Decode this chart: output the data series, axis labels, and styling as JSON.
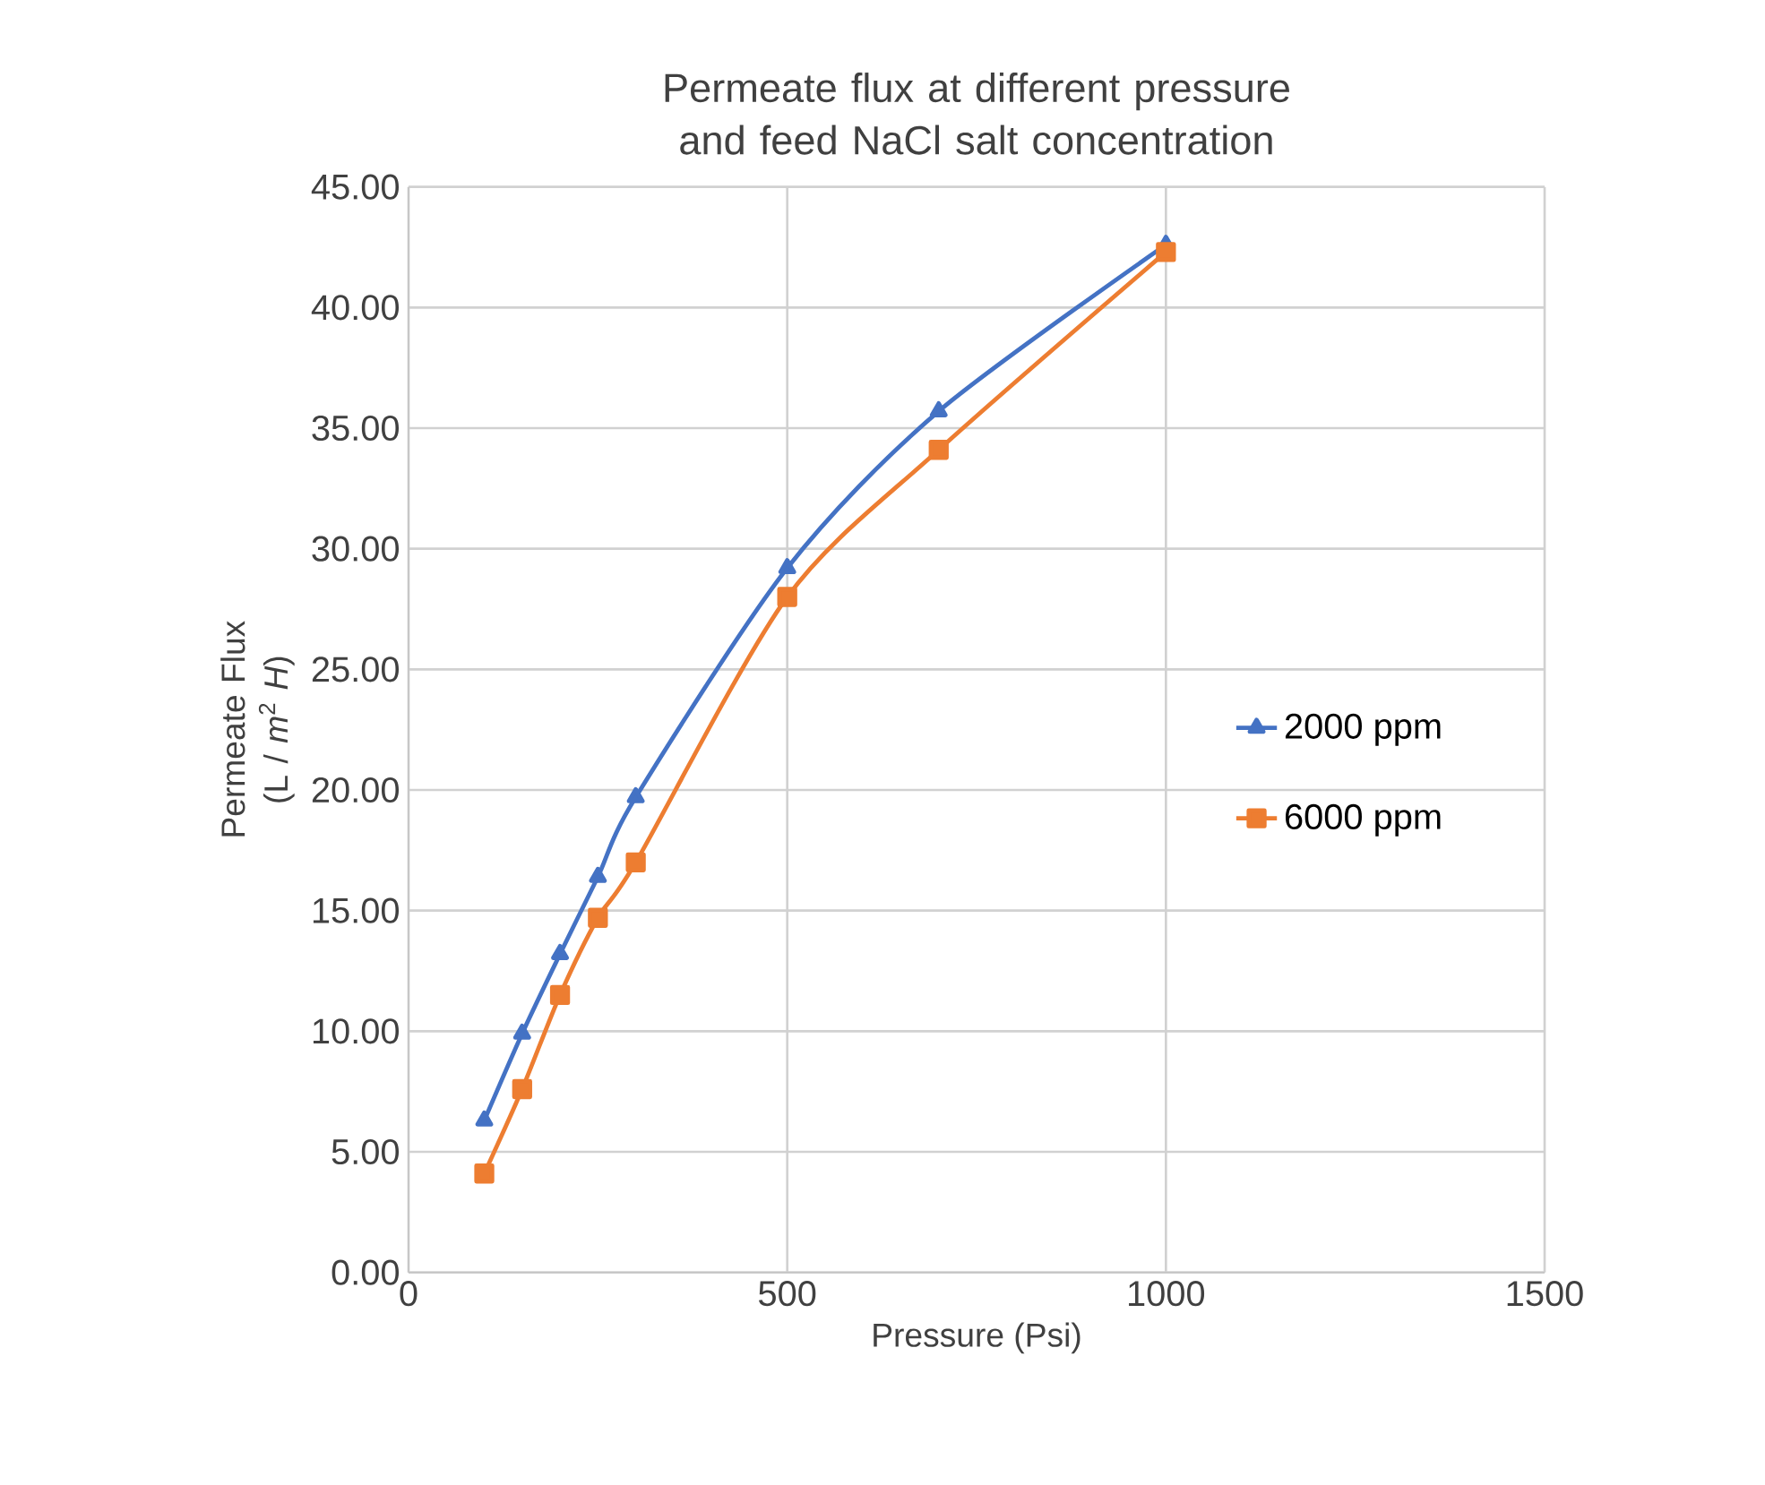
{
  "chart_data": {
    "type": "line",
    "title": "Permeate flux at different pressure and feed NaCl salt concentration",
    "xlabel": "Pressure (Psi)",
    "ylabel": "Permeate Flux (L / *m*$^{2}$ *H*)",
    "xlim": [
      0,
      1500
    ],
    "xticks": [
      0,
      500,
      1000,
      1500
    ],
    "ylim": [
      0,
      45
    ],
    "yticks": [
      {
        "value": 0,
        "label": "0.00"
      },
      {
        "value": 5,
        "label": "5.00"
      },
      {
        "value": 10,
        "label": "10.00"
      },
      {
        "value": 15,
        "label": "15.00"
      },
      {
        "value": 20,
        "label": "20.00"
      },
      {
        "value": 25,
        "label": "25.00"
      },
      {
        "value": 30,
        "label": "30.00"
      },
      {
        "value": 35,
        "label": "35.00"
      },
      {
        "value": 40,
        "label": "40.00"
      },
      {
        "value": 45,
        "label": "45.00"
      }
    ],
    "grid": true,
    "legend": "right",
    "series": [
      {
        "name": "2000 ppm",
        "color": "#4472c4",
        "marker": "triangle",
        "x": [
          100,
          150,
          200,
          250,
          300,
          500,
          700,
          1000
        ],
        "values": [
          6.3,
          9.9,
          13.2,
          16.4,
          19.7,
          29.2,
          35.7,
          42.6
        ]
      },
      {
        "name": "6000 ppm",
        "color": "#ed7d31",
        "marker": "square",
        "x": [
          100,
          150,
          200,
          250,
          300,
          500,
          700,
          1000
        ],
        "values": [
          4.1,
          7.6,
          11.5,
          14.7,
          17.0,
          28.0,
          34.1,
          42.3
        ]
      }
    ]
  }
}
